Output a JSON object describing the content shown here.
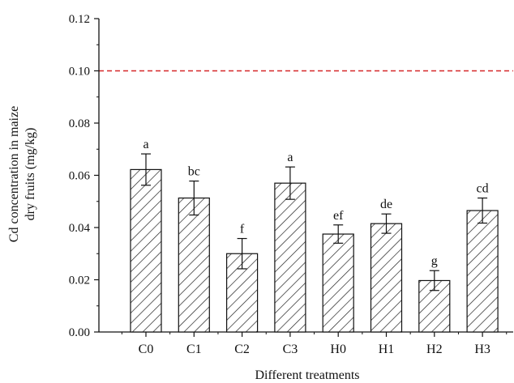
{
  "chart_data": {
    "type": "bar",
    "categories": [
      "C0",
      "C1",
      "C2",
      "C3",
      "H0",
      "H1",
      "H2",
      "H3"
    ],
    "values": [
      0.0622,
      0.0513,
      0.03,
      0.057,
      0.0375,
      0.0415,
      0.0197,
      0.0465
    ],
    "errors": [
      0.006,
      0.0065,
      0.0058,
      0.0062,
      0.0035,
      0.0037,
      0.0038,
      0.0048
    ],
    "significance_labels": [
      "a",
      "bc",
      "f",
      "a",
      "ef",
      "de",
      "g",
      "cd"
    ],
    "ylabel_line1": "Cd concentration in maize",
    "ylabel_line2": "dry fruits (mg/kg)",
    "xlabel": "Different treatments",
    "ylim": [
      0,
      0.12
    ],
    "yticks": [
      "0.00",
      "0.02",
      "0.04",
      "0.06",
      "0.08",
      "0.10",
      "0.12"
    ],
    "reference_line": {
      "value": 0.1,
      "color": "#d62728",
      "style": "dashed"
    },
    "bar_fill": "diagonal-hatch",
    "grid": false,
    "legend": "none"
  }
}
